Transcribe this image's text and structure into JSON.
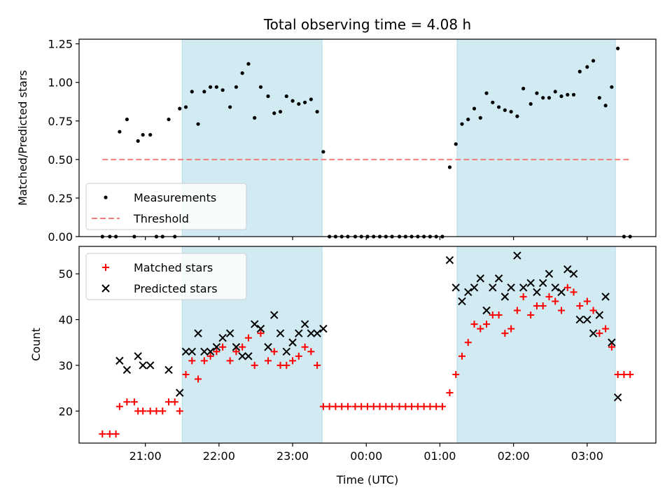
{
  "chart_data": [
    {
      "type": "scatter",
      "title": "Total observing time = 4.08 h",
      "ylabel": "Matched/Predicted stars",
      "xlabel": "",
      "ylim": [
        0,
        1.28
      ],
      "yticks": [
        "0.00",
        "0.25",
        "0.50",
        "0.75",
        "1.00",
        "1.25"
      ],
      "xlim": [
        "20:06",
        "03:56"
      ],
      "shaded_ranges": [
        [
          "21:30",
          "23:24"
        ],
        [
          "01:14",
          "03:23"
        ]
      ],
      "shade_color": "#add8e6",
      "legend_position": "lower-left",
      "series": [
        {
          "name": "Measurements",
          "marker": "dot",
          "color": "#000000",
          "points": [
            [
              "20:25",
              0
            ],
            [
              "20:31",
              0
            ],
            [
              "20:36",
              0
            ],
            [
              "20:39",
              0.68
            ],
            [
              "20:45",
              0.76
            ],
            [
              "20:51",
              0
            ],
            [
              "20:54",
              0.62
            ],
            [
              "20:58",
              0.66
            ],
            [
              "21:04",
              0.66
            ],
            [
              "21:09",
              0
            ],
            [
              "21:14",
              0
            ],
            [
              "21:19",
              0.76
            ],
            [
              "21:24",
              0
            ],
            [
              "21:28",
              0.83
            ],
            [
              "21:33",
              0.84
            ],
            [
              "21:38",
              0.94
            ],
            [
              "21:43",
              0.73
            ],
            [
              "21:48",
              0.94
            ],
            [
              "21:53",
              0.97
            ],
            [
              "21:58",
              0.97
            ],
            [
              "22:03",
              0.95
            ],
            [
              "22:09",
              0.84
            ],
            [
              "22:14",
              0.97
            ],
            [
              "22:19",
              1.06
            ],
            [
              "22:24",
              1.12
            ],
            [
              "22:29",
              0.77
            ],
            [
              "22:34",
              0.97
            ],
            [
              "22:40",
              0.91
            ],
            [
              "22:45",
              0.8
            ],
            [
              "22:50",
              0.81
            ],
            [
              "22:55",
              0.91
            ],
            [
              "23:00",
              0.88
            ],
            [
              "23:05",
              0.86
            ],
            [
              "23:10",
              0.87
            ],
            [
              "23:15",
              0.89
            ],
            [
              "23:20",
              0.81
            ],
            [
              "23:25",
              0.55
            ],
            [
              "23:30",
              0
            ],
            [
              "23:35",
              0
            ],
            [
              "23:40",
              0
            ],
            [
              "23:45",
              0
            ],
            [
              "23:51",
              0
            ],
            [
              "23:56",
              0
            ],
            [
              "00:01",
              0
            ],
            [
              "00:06",
              0
            ],
            [
              "00:11",
              0
            ],
            [
              "00:16",
              0
            ],
            [
              "00:21",
              0
            ],
            [
              "00:27",
              0
            ],
            [
              "00:32",
              0
            ],
            [
              "00:37",
              0
            ],
            [
              "00:42",
              0
            ],
            [
              "00:47",
              0
            ],
            [
              "00:52",
              0
            ],
            [
              "00:57",
              0
            ],
            [
              "01:02",
              0
            ],
            [
              "01:08",
              0.45
            ],
            [
              "01:13",
              0.6
            ],
            [
              "01:18",
              0.73
            ],
            [
              "01:23",
              0.76
            ],
            [
              "01:28",
              0.83
            ],
            [
              "01:33",
              0.77
            ],
            [
              "01:38",
              0.93
            ],
            [
              "01:43",
              0.87
            ],
            [
              "01:48",
              0.84
            ],
            [
              "01:53",
              0.82
            ],
            [
              "01:58",
              0.81
            ],
            [
              "02:03",
              0.78
            ],
            [
              "02:08",
              0.96
            ],
            [
              "02:14",
              0.86
            ],
            [
              "02:19",
              0.93
            ],
            [
              "02:24",
              0.9
            ],
            [
              "02:29",
              0.9
            ],
            [
              "02:34",
              0.94
            ],
            [
              "02:39",
              0.91
            ],
            [
              "02:44",
              0.92
            ],
            [
              "02:49",
              0.92
            ],
            [
              "02:54",
              1.07
            ],
            [
              "03:00",
              1.1
            ],
            [
              "03:05",
              1.14
            ],
            [
              "03:10",
              0.9
            ],
            [
              "03:15",
              0.85
            ],
            [
              "03:20",
              0.97
            ],
            [
              "03:25",
              1.22
            ],
            [
              "03:30",
              0
            ],
            [
              "03:35",
              0
            ]
          ]
        },
        {
          "name": "Threshold",
          "marker": "dashed-line",
          "color": "#f08080",
          "points": [
            [
              "20:25",
              0.5
            ],
            [
              "03:35",
              0.5
            ]
          ]
        }
      ]
    },
    {
      "type": "scatter",
      "title": "",
      "ylabel": "Count",
      "xlabel": "Time (UTC)",
      "ylim": [
        13,
        56
      ],
      "yticks": [
        "20",
        "30",
        "40",
        "50"
      ],
      "xticks": [
        "21:00",
        "22:00",
        "23:00",
        "00:00",
        "01:00",
        "02:00",
        "03:00"
      ],
      "xlim": [
        "20:06",
        "03:56"
      ],
      "shaded_ranges": [
        [
          "21:30",
          "23:24"
        ],
        [
          "01:14",
          "03:23"
        ]
      ],
      "shade_color": "#add8e6",
      "legend_position": "upper-left",
      "series": [
        {
          "name": "Matched stars",
          "marker": "plus",
          "color": "#ff0000",
          "points": [
            [
              "20:25",
              15
            ],
            [
              "20:31",
              15
            ],
            [
              "20:36",
              15
            ],
            [
              "20:39",
              21
            ],
            [
              "20:45",
              22
            ],
            [
              "20:51",
              22
            ],
            [
              "20:54",
              20
            ],
            [
              "20:58",
              20
            ],
            [
              "21:04",
              20
            ],
            [
              "21:09",
              20
            ],
            [
              "21:14",
              20
            ],
            [
              "21:19",
              22
            ],
            [
              "21:24",
              22
            ],
            [
              "21:28",
              20
            ],
            [
              "21:33",
              28
            ],
            [
              "21:38",
              31
            ],
            [
              "21:43",
              27
            ],
            [
              "21:48",
              31
            ],
            [
              "21:53",
              32
            ],
            [
              "21:58",
              33
            ],
            [
              "22:03",
              34
            ],
            [
              "22:09",
              31
            ],
            [
              "22:14",
              33
            ],
            [
              "22:19",
              34
            ],
            [
              "22:24",
              36
            ],
            [
              "22:29",
              30
            ],
            [
              "22:34",
              37
            ],
            [
              "22:40",
              31
            ],
            [
              "22:45",
              33
            ],
            [
              "22:50",
              30
            ],
            [
              "22:55",
              30
            ],
            [
              "23:00",
              31
            ],
            [
              "23:05",
              32
            ],
            [
              "23:10",
              34
            ],
            [
              "23:15",
              33
            ],
            [
              "23:20",
              30
            ],
            [
              "23:25",
              21
            ],
            [
              "23:30",
              21
            ],
            [
              "23:35",
              21
            ],
            [
              "23:40",
              21
            ],
            [
              "23:45",
              21
            ],
            [
              "23:51",
              21
            ],
            [
              "23:56",
              21
            ],
            [
              "00:01",
              21
            ],
            [
              "00:06",
              21
            ],
            [
              "00:11",
              21
            ],
            [
              "00:16",
              21
            ],
            [
              "00:21",
              21
            ],
            [
              "00:27",
              21
            ],
            [
              "00:32",
              21
            ],
            [
              "00:37",
              21
            ],
            [
              "00:42",
              21
            ],
            [
              "00:47",
              21
            ],
            [
              "00:52",
              21
            ],
            [
              "00:57",
              21
            ],
            [
              "01:02",
              21
            ],
            [
              "01:08",
              24
            ],
            [
              "01:13",
              28
            ],
            [
              "01:18",
              32
            ],
            [
              "01:23",
              35
            ],
            [
              "01:28",
              39
            ],
            [
              "01:33",
              38
            ],
            [
              "01:38",
              39
            ],
            [
              "01:43",
              41
            ],
            [
              "01:48",
              41
            ],
            [
              "01:53",
              37
            ],
            [
              "01:58",
              38
            ],
            [
              "02:03",
              42
            ],
            [
              "02:08",
              45
            ],
            [
              "02:14",
              41
            ],
            [
              "02:19",
              43
            ],
            [
              "02:24",
              43
            ],
            [
              "02:29",
              45
            ],
            [
              "02:34",
              44
            ],
            [
              "02:39",
              42
            ],
            [
              "02:44",
              47
            ],
            [
              "02:49",
              46
            ],
            [
              "02:54",
              43
            ],
            [
              "03:00",
              44
            ],
            [
              "03:05",
              42
            ],
            [
              "03:10",
              37
            ],
            [
              "03:15",
              38
            ],
            [
              "03:20",
              34
            ],
            [
              "03:25",
              28
            ],
            [
              "03:30",
              28
            ],
            [
              "03:35",
              28
            ]
          ]
        },
        {
          "name": "Predicted stars",
          "marker": "cross",
          "color": "#000000",
          "points": [
            [
              "20:39",
              31
            ],
            [
              "20:45",
              29
            ],
            [
              "20:54",
              32
            ],
            [
              "20:58",
              30
            ],
            [
              "21:04",
              30
            ],
            [
              "21:19",
              29
            ],
            [
              "21:28",
              24
            ],
            [
              "21:33",
              33
            ],
            [
              "21:38",
              33
            ],
            [
              "21:43",
              37
            ],
            [
              "21:48",
              33
            ],
            [
              "21:53",
              33
            ],
            [
              "21:58",
              34
            ],
            [
              "22:03",
              36
            ],
            [
              "22:09",
              37
            ],
            [
              "22:14",
              34
            ],
            [
              "22:19",
              32
            ],
            [
              "22:24",
              32
            ],
            [
              "22:29",
              39
            ],
            [
              "22:34",
              38
            ],
            [
              "22:40",
              34
            ],
            [
              "22:45",
              41
            ],
            [
              "22:50",
              37
            ],
            [
              "22:55",
              33
            ],
            [
              "23:00",
              35
            ],
            [
              "23:05",
              37
            ],
            [
              "23:10",
              39
            ],
            [
              "23:15",
              37
            ],
            [
              "23:20",
              37
            ],
            [
              "23:25",
              38
            ],
            [
              "01:08",
              53
            ],
            [
              "01:13",
              47
            ],
            [
              "01:18",
              44
            ],
            [
              "01:23",
              46
            ],
            [
              "01:28",
              47
            ],
            [
              "01:33",
              49
            ],
            [
              "01:38",
              42
            ],
            [
              "01:43",
              47
            ],
            [
              "01:48",
              49
            ],
            [
              "01:53",
              45
            ],
            [
              "01:58",
              47
            ],
            [
              "02:03",
              54
            ],
            [
              "02:08",
              47
            ],
            [
              "02:14",
              48
            ],
            [
              "02:19",
              46
            ],
            [
              "02:24",
              48
            ],
            [
              "02:29",
              50
            ],
            [
              "02:34",
              47
            ],
            [
              "02:39",
              46
            ],
            [
              "02:44",
              51
            ],
            [
              "02:49",
              50
            ],
            [
              "02:54",
              40
            ],
            [
              "03:00",
              40
            ],
            [
              "03:05",
              37
            ],
            [
              "03:10",
              41
            ],
            [
              "03:15",
              45
            ],
            [
              "03:20",
              35
            ],
            [
              "03:25",
              23
            ]
          ]
        }
      ]
    }
  ]
}
